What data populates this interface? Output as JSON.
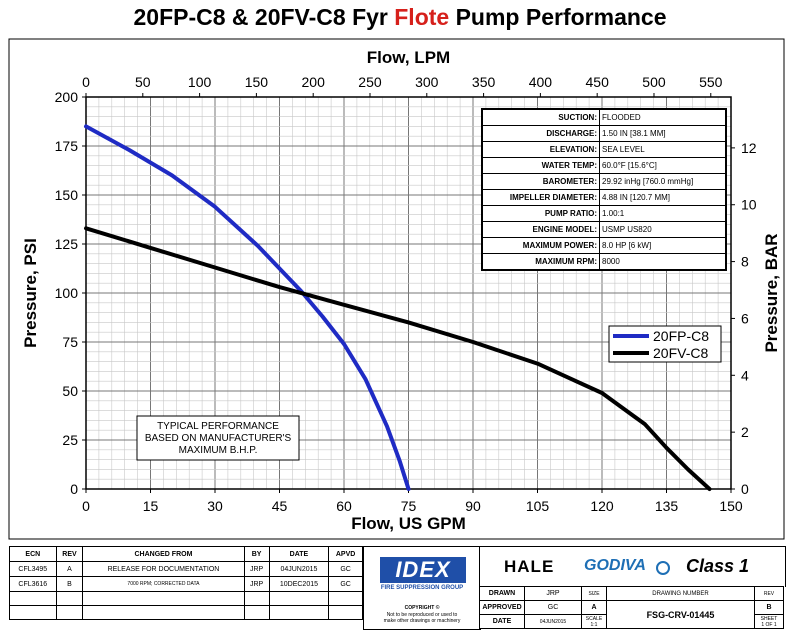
{
  "title": {
    "part1": "20FP-C8 & 20FV-C8 Fyr ",
    "part2": "Flote",
    "part3": " Pump Performance"
  },
  "colors": {
    "accent_red": "#d6201b",
    "series_fp": "#1f2bc4",
    "series_fv": "#000000",
    "idex_blue": "#1f4fa8",
    "godiva_blue": "#1e6fb5"
  },
  "chart_data": {
    "type": "line",
    "xlabel_bottom": "Flow, US GPM",
    "xlabel_top": "Flow, LPM",
    "ylabel_left": "Pressure, PSI",
    "ylabel_right": "Pressure, BAR",
    "xlim": [
      0,
      150
    ],
    "ylim": [
      0,
      200
    ],
    "top_xlim": [
      0,
      567.8
    ],
    "right_ylim": [
      0,
      13.79
    ],
    "x_ticks": [
      "0",
      "15",
      "30",
      "45",
      "60",
      "75",
      "90",
      "105",
      "120",
      "135",
      "150"
    ],
    "x_tick_values": [
      0,
      15,
      30,
      45,
      60,
      75,
      90,
      105,
      120,
      135,
      150
    ],
    "top_ticks": [
      "0",
      "50",
      "100",
      "150",
      "200",
      "250",
      "300",
      "350",
      "400",
      "450",
      "500",
      "550"
    ],
    "top_tick_values": [
      0,
      50,
      100,
      150,
      200,
      250,
      300,
      350,
      400,
      450,
      500,
      550
    ],
    "y_ticks": [
      "0",
      "25",
      "50",
      "75",
      "100",
      "125",
      "150",
      "175",
      "200"
    ],
    "y_tick_values": [
      0,
      25,
      50,
      75,
      100,
      125,
      150,
      175,
      200
    ],
    "right_ticks": [
      "0",
      "2",
      "4",
      "6",
      "8",
      "10",
      "12"
    ],
    "right_tick_values": [
      0,
      2,
      4,
      6,
      8,
      10,
      12
    ],
    "grid": true,
    "legend_position": "right",
    "series": [
      {
        "name": "20FP-C8",
        "color": "#1f2bc4",
        "x": [
          0,
          10,
          20,
          30,
          40,
          50,
          55,
          60,
          65,
          70,
          73,
          75
        ],
        "y": [
          185,
          173,
          160,
          144,
          124,
          101,
          88,
          74,
          56,
          32,
          14,
          0
        ]
      },
      {
        "name": "20FV-C8",
        "color": "#000000",
        "x": [
          0,
          15,
          30,
          45,
          60,
          75,
          90,
          105,
          120,
          130,
          135,
          140,
          145
        ],
        "y": [
          133,
          123,
          113,
          103,
          94,
          85,
          75,
          64,
          49,
          33,
          21,
          10,
          0
        ]
      }
    ],
    "annotation": [
      "TYPICAL PERFORMANCE",
      "BASED ON MANUFACTURER'S",
      "MAXIMUM B.H.P."
    ]
  },
  "specs": [
    {
      "label": "SUCTION:",
      "value": "FLOODED"
    },
    {
      "label": "DISCHARGE:",
      "value": "1.50 IN [38.1 MM]"
    },
    {
      "label": "ELEVATION:",
      "value": "SEA LEVEL"
    },
    {
      "label": "WATER TEMP:",
      "value": "60.0°F [15.6°C]"
    },
    {
      "label": "BAROMETER:",
      "value": "29.92 inHg [760.0 mmHg]"
    },
    {
      "label": "IMPELLER DIAMETER:",
      "value": "4.88 IN [120.7 MM]"
    },
    {
      "label": "PUMP RATIO:",
      "value": "1.00:1"
    },
    {
      "label": "ENGINE MODEL:",
      "value": "USMP US820"
    },
    {
      "label": "MAXIMUM POWER:",
      "value": "8.0 HP [6 kW]"
    },
    {
      "label": "MAXIMUM RPM:",
      "value": "8000"
    }
  ],
  "revisions": {
    "headers": [
      "ECN",
      "REV",
      "CHANGED FROM",
      "BY",
      "DATE",
      "APVD"
    ],
    "rows": [
      [
        "CFL3495",
        "A",
        "RELEASE FOR DOCUMENTATION",
        "JRP",
        "04JUN2015",
        "GC"
      ],
      [
        "CFL3616",
        "B",
        "7000 RPM; CORRECTED DATA",
        "JRP",
        "10DEC2015",
        "GC"
      ]
    ]
  },
  "logos": {
    "idex": "IDEX",
    "idex_sub": "FIRE SUPPRESSION GROUP",
    "hale": "HALE",
    "godiva": "GODIVA",
    "class1": "Class 1"
  },
  "copyright": [
    "COPYRIGHT ©",
    "Not to be reproduced or used to",
    "make other drawings or machinery"
  ],
  "drawing_block": {
    "drawn_label": "DRAWN",
    "drawn_value": "JRP",
    "size_label": "SIZE",
    "size_value": "A",
    "drawing_number_label": "DRAWING NUMBER",
    "rev_label": "REV",
    "rev_value": "B",
    "approved_label": "APPROVED",
    "approved_value": "GC",
    "date_label": "DATE",
    "date_value": "04JUN2015",
    "scale_label": "SCALE",
    "scale_value": "1:1",
    "drawing_number": "FSG-CRV-01445",
    "sheet_label": "SHEET",
    "sheet_value": "1 OF 1"
  }
}
